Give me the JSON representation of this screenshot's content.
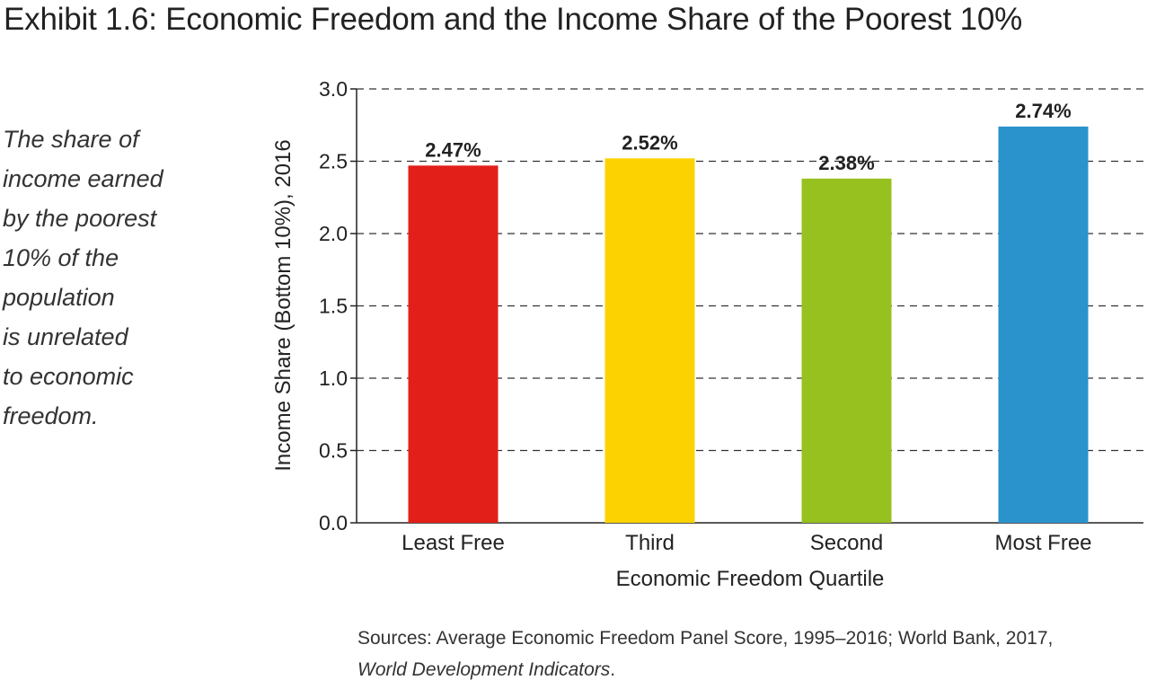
{
  "title": "Exhibit 1.6: Economic Freedom and the Income Share of the Poorest 10%",
  "note_lines": [
    "The share of",
    "income earned",
    "by the poorest",
    "10% of the",
    "population",
    "is unrelated",
    "to economic",
    "freedom."
  ],
  "sources": {
    "line1": "Sources: Average Economic Freedom Panel Score, 1995–2016; World Bank, 2017,",
    "line2_italic": "World Development Indicators",
    "line2_end": "."
  },
  "chart_data": {
    "type": "bar",
    "title": "Exhibit 1.6: Economic Freedom and the Income Share of the Poorest 10%",
    "categories": [
      "Least Free",
      "Third",
      "Second",
      "Most Free"
    ],
    "values": [
      2.47,
      2.52,
      2.38,
      2.74
    ],
    "data_labels": [
      "2.47%",
      "2.52%",
      "2.38%",
      "2.74%"
    ],
    "colors": [
      "#e31f19",
      "#fcd200",
      "#97c11f",
      "#2a93cb"
    ],
    "xlabel": "Economic Freedom Quartile",
    "ylabel": "Income Share (Bottom 10%), 2016",
    "ylim": [
      0,
      3.0
    ],
    "yticks": [
      "0.0",
      "0.5",
      "1.0",
      "1.5",
      "2.0",
      "2.5",
      "3.0"
    ],
    "grid": true
  }
}
